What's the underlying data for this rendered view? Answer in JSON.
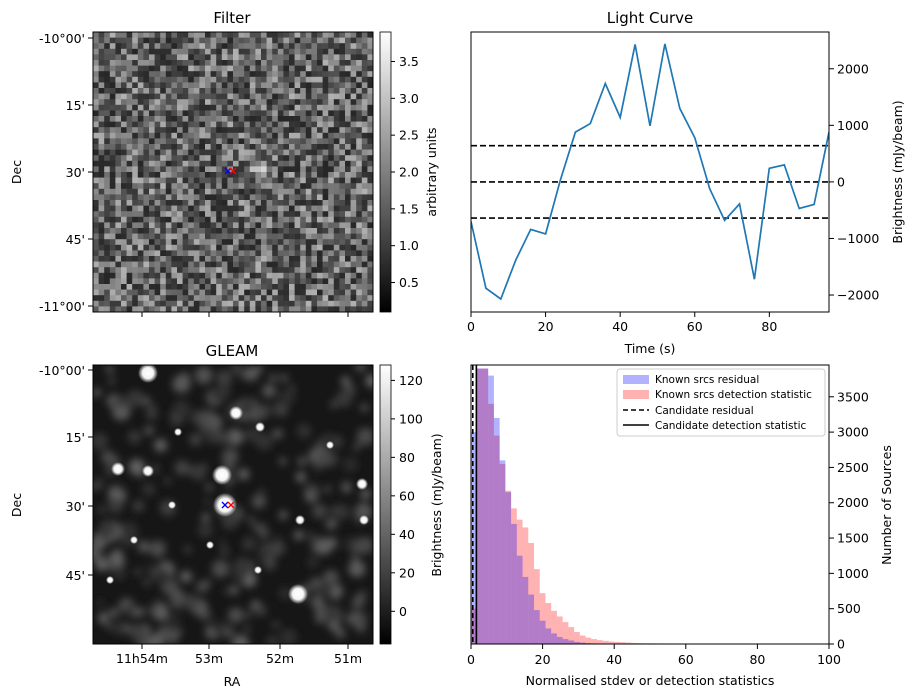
{
  "chart_data": [
    {
      "type": "heatmap",
      "title": "Filter",
      "ylabel": "Dec",
      "y_ticks": [
        "-10°00'",
        "15'",
        "30'",
        "45'",
        "-11°00'"
      ],
      "colorbar_label": "arbitrary units",
      "colorbar_range": [
        0.1,
        3.9
      ],
      "colorbar_ticks": [
        "0.5",
        "1.0",
        "1.5",
        "2.0",
        "2.5",
        "3.0",
        "3.5"
      ],
      "markers": [
        "x",
        "x"
      ],
      "marker_colors": [
        "#0000ff",
        "#ff0000"
      ]
    },
    {
      "type": "line",
      "title": "Light Curve",
      "xlabel": "Time (s)",
      "ylabel": "Brightness (mJy/beam)",
      "xlim": [
        0,
        96
      ],
      "ylim": [
        -2300,
        2650
      ],
      "x_ticks": [
        "0",
        "20",
        "40",
        "60",
        "80"
      ],
      "y_ticks": [
        "−2000",
        "−1000",
        "0",
        "1000",
        "2000"
      ],
      "x": [
        0,
        4,
        8,
        12,
        16,
        20,
        24,
        28,
        32,
        36,
        40,
        44,
        48,
        52,
        56,
        60,
        64,
        68,
        72,
        76,
        80,
        84,
        88,
        92,
        96
      ],
      "values": [
        -700,
        -1880,
        -2070,
        -1380,
        -840,
        -920,
        40,
        880,
        1030,
        1740,
        1140,
        2430,
        990,
        2440,
        1300,
        780,
        -120,
        -680,
        -390,
        -1720,
        240,
        300,
        -470,
        -400,
        880
      ],
      "hlines": [
        640,
        0,
        -640
      ],
      "line_color": "#1f77b4"
    },
    {
      "type": "heatmap",
      "title": "GLEAM",
      "xlabel": "RA",
      "ylabel": "Dec",
      "x_ticks": [
        "11h54m",
        "53m",
        "52m",
        "51m"
      ],
      "y_ticks": [
        "-10°00'",
        "15'",
        "30'",
        "45'"
      ],
      "colorbar_label": "Brightness (mJy/beam)",
      "colorbar_range": [
        -17,
        128
      ],
      "colorbar_ticks": [
        "0",
        "20",
        "40",
        "60",
        "80",
        "100",
        "120"
      ],
      "markers": [
        "x",
        "x"
      ],
      "marker_colors": [
        "#0000ff",
        "#ff0000"
      ]
    },
    {
      "type": "bar",
      "xlabel": "Normalised stdev or detection statistics",
      "ylabel": "Number of Sources",
      "xlim": [
        0,
        100
      ],
      "ylim": [
        0,
        3950
      ],
      "x_ticks": [
        "0",
        "20",
        "40",
        "60",
        "80",
        "100"
      ],
      "y_ticks": [
        "0",
        "500",
        "1000",
        "1500",
        "2000",
        "2500",
        "3000",
        "3500"
      ],
      "bin_width": 1.6,
      "series": [
        {
          "name": "Known srcs residual",
          "color": "#0000ff",
          "values": [
            3000,
            3900,
            3900,
            3800,
            3200,
            2600,
            2150,
            1700,
            1250,
            950,
            700,
            480,
            330,
            220,
            150,
            100,
            70,
            50,
            30,
            20,
            12,
            8,
            5,
            3
          ]
        },
        {
          "name": "Known srcs detection statistic",
          "color": "#ff0000",
          "values": [
            500,
            3900,
            3900,
            3400,
            2950,
            2550,
            2170,
            1920,
            1760,
            1650,
            1430,
            1060,
            720,
            580,
            470,
            390,
            310,
            240,
            170,
            120,
            90,
            70,
            55,
            45,
            35,
            30,
            25,
            20,
            15,
            12,
            10,
            10,
            8,
            8,
            6,
            6,
            5,
            5,
            4,
            4
          ]
        }
      ],
      "vlines": [
        {
          "name": "Candidate residual",
          "x": 0.5,
          "style": "dashed"
        },
        {
          "name": "Candidate detection statistic",
          "x": 1.5,
          "style": "solid"
        }
      ],
      "legend_position": "top-right"
    }
  ]
}
